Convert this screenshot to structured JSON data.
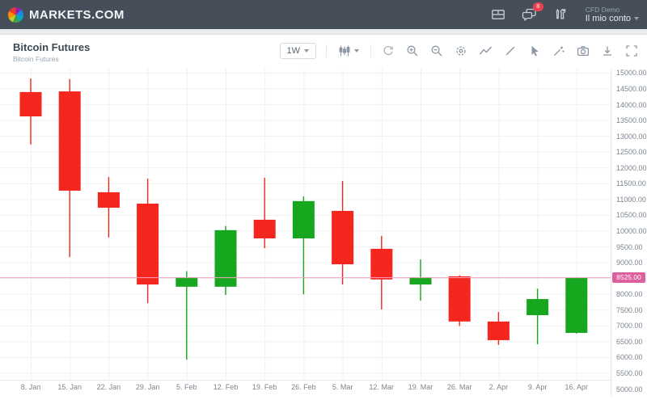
{
  "header": {
    "brand": "MARKETS.COM",
    "notification_count": "8",
    "account_type": "CFD Demo",
    "account_menu": "Il mio conto",
    "bar_color": "#454e59"
  },
  "chart_header": {
    "title": "Bitcoin Futures",
    "subtitle": "Bitcoin Futures",
    "timeframe": "1W"
  },
  "chart_data": {
    "type": "candlestick",
    "title": "Bitcoin Futures",
    "timeframe": "1W",
    "grid": "on",
    "current_price": "8525.00",
    "current_price_value": 8525,
    "y_axis": {
      "max": 15000,
      "min": 5000,
      "step": 500,
      "hidden_label_value": 8500,
      "visible_range": [
        5295,
        15140
      ],
      "tick_labels": [
        "15000.00",
        "14500.00",
        "14000.00",
        "13500.00",
        "13000.00",
        "12500.00",
        "12000.00",
        "11500.00",
        "11000.00",
        "10500.00",
        "10000.00",
        "9500.00",
        "9000.00",
        "8525.00",
        "8000.00",
        "7500.00",
        "7000.00",
        "6500.00",
        "6000.00",
        "5500.00",
        "5000.00"
      ]
    },
    "x_labels": [
      "8. Jan",
      "15. Jan",
      "22. Jan",
      "29. Jan",
      "5. Feb",
      "12. Feb",
      "19. Feb",
      "26. Feb",
      "5. Mar",
      "12. Mar",
      "19. Mar",
      "26. Mar",
      "2. Apr",
      "9. Apr",
      "16. Apr"
    ],
    "candles": [
      {
        "date": "8. Jan",
        "open": 14400,
        "high": 14830,
        "low": 12740,
        "close": 13630
      },
      {
        "date": "15. Jan",
        "open": 14420,
        "high": 14810,
        "low": 9180,
        "close": 11280
      },
      {
        "date": "22. Jan",
        "open": 11230,
        "high": 11710,
        "low": 9800,
        "close": 10740
      },
      {
        "date": "29. Jan",
        "open": 10870,
        "high": 11660,
        "low": 7720,
        "close": 8310
      },
      {
        "date": "5. Feb",
        "open": 8240,
        "high": 8730,
        "low": 5930,
        "close": 8540
      },
      {
        "date": "12. Feb",
        "open": 8240,
        "high": 10160,
        "low": 7980,
        "close": 10030
      },
      {
        "date": "19. Feb",
        "open": 10360,
        "high": 11690,
        "low": 9460,
        "close": 9770
      },
      {
        "date": "26. Feb",
        "open": 9770,
        "high": 11100,
        "low": 8000,
        "close": 10950
      },
      {
        "date": "5. Mar",
        "open": 10640,
        "high": 11590,
        "low": 8310,
        "close": 8950
      },
      {
        "date": "12. Mar",
        "open": 9440,
        "high": 9850,
        "low": 7520,
        "close": 8470
      },
      {
        "date": "19. Mar",
        "open": 8310,
        "high": 9100,
        "low": 7800,
        "close": 8540
      },
      {
        "date": "26. Mar",
        "open": 8570,
        "high": 8600,
        "low": 7000,
        "close": 7140
      },
      {
        "date": "2. Apr",
        "open": 7140,
        "high": 7440,
        "low": 6400,
        "close": 6550
      },
      {
        "date": "9. Apr",
        "open": 7340,
        "high": 8180,
        "low": 6420,
        "close": 7850
      },
      {
        "date": "16. Apr",
        "open": 6780,
        "high": 8540,
        "low": 6760,
        "close": 8525
      }
    ],
    "colors": {
      "up": "#17a71e",
      "down": "#f5261e",
      "current_line": "#f6a3c6",
      "current_badge": "#dc5f9e",
      "grid": "#eef0f2"
    }
  }
}
